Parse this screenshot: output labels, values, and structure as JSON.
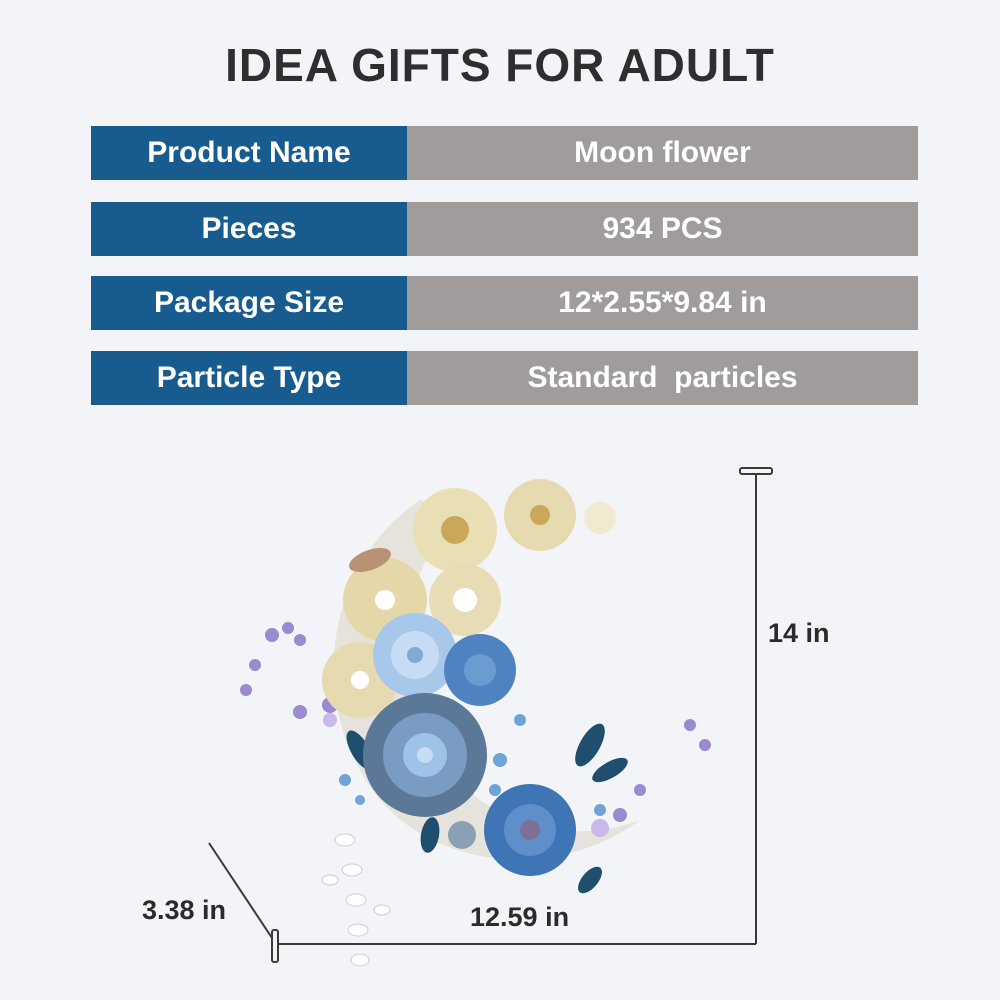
{
  "title": "IDEA GIFTS FOR ADULT",
  "specs": [
    {
      "label": "Product Name",
      "value": "Moon flower"
    },
    {
      "label": "Pieces",
      "value": "934 PCS"
    },
    {
      "label": "Package Size",
      "value": "12*2.55*9.84 in"
    },
    {
      "label": "Particle Type",
      "value": "Standard  particles"
    }
  ],
  "dimensions": {
    "height": "14 in",
    "width": "12.59 in",
    "depth": "3.38 in"
  },
  "colors": {
    "label_bg": "#185c8f",
    "value_bg": "#a19c9c",
    "background": "#f3f4f8"
  }
}
